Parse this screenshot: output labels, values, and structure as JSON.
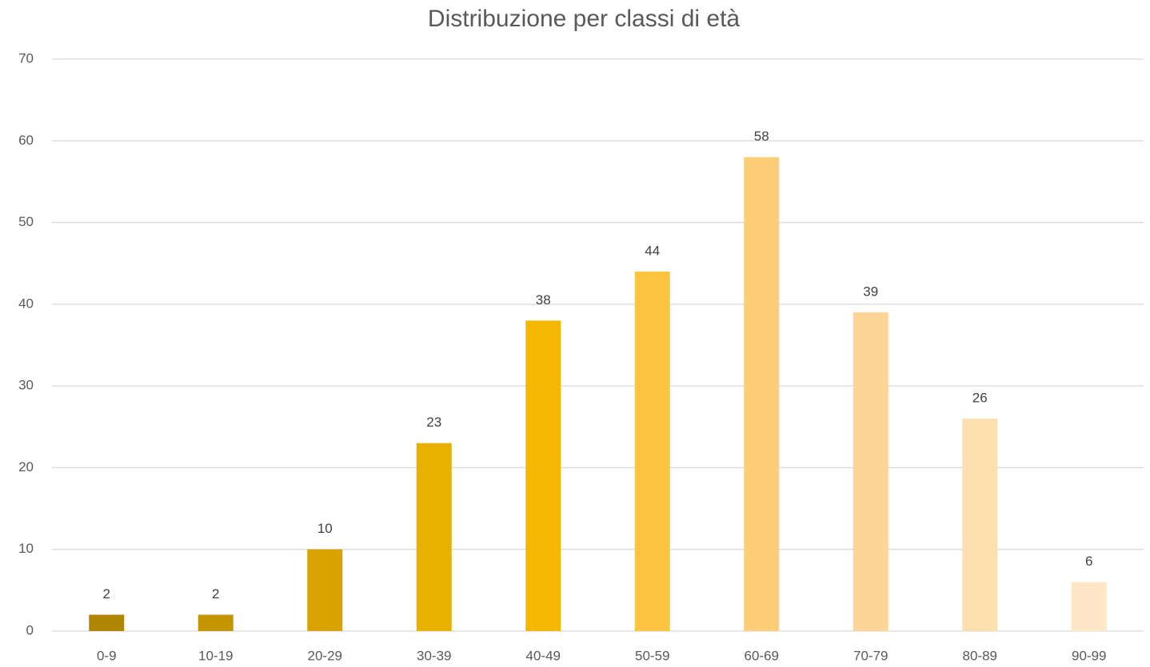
{
  "chart_data": {
    "type": "bar",
    "title": "Distribuzione per classi di età",
    "categories": [
      "0-9",
      "10-19",
      "20-29",
      "30-39",
      "40-49",
      "50-59",
      "60-69",
      "70-79",
      "80-89",
      "90-99"
    ],
    "values": [
      2,
      2,
      10,
      23,
      38,
      44,
      58,
      39,
      26,
      6
    ],
    "colors": [
      "#b08500",
      "#c49500",
      "#d8a300",
      "#e8b000",
      "#f5b800",
      "#fcc440",
      "#fdcd78",
      "#fdd596",
      "#fedfb0",
      "#fee6c6"
    ],
    "ylim": [
      0,
      70
    ],
    "yticks": [
      0,
      10,
      20,
      30,
      40,
      50,
      60,
      70
    ],
    "grid": true,
    "data_labels": true
  }
}
